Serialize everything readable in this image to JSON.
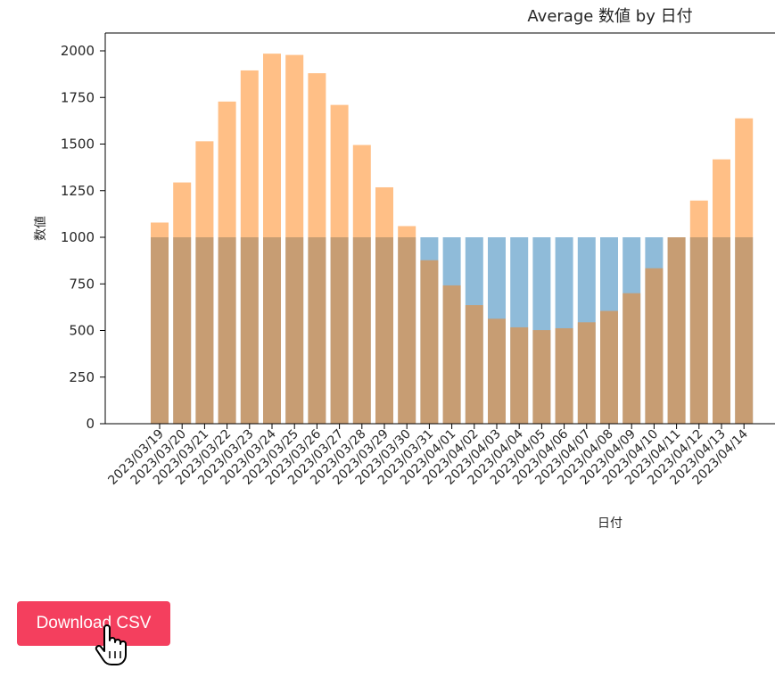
{
  "chart_data": {
    "type": "bar",
    "title": "Average 数値 by 日付",
    "xlabel": "日付",
    "ylabel": "数値",
    "ylim": [
      0,
      2100
    ],
    "yticks": [
      0,
      250,
      500,
      750,
      1000,
      1250,
      1500,
      1750,
      2000
    ],
    "baseline": 1000,
    "categories": [
      "2023/03/19",
      "2023/03/20",
      "2023/03/21",
      "2023/03/22",
      "2023/03/23",
      "2023/03/24",
      "2023/03/25",
      "2023/03/26",
      "2023/03/27",
      "2023/03/28",
      "2023/03/29",
      "2023/03/30",
      "2023/03/31",
      "2023/04/01",
      "2023/04/02",
      "2023/04/03",
      "2023/04/04",
      "2023/04/05",
      "2023/04/06",
      "2023/04/07",
      "2023/04/08",
      "2023/04/09",
      "2023/04/10",
      "2023/04/11",
      "2023/04/12",
      "2023/04/13",
      "2023/04/14"
    ],
    "series": [
      {
        "color": "#1f77b4",
        "values": [
          1000,
          1000,
          1000,
          1000,
          1000,
          1000,
          1000,
          1000,
          1000,
          1000,
          1000,
          1000,
          1000,
          1000,
          1000,
          1000,
          1000,
          1000,
          1000,
          1000,
          1000,
          1000,
          1000,
          1000,
          1000,
          1000,
          1000
        ]
      },
      {
        "color": "#ff7f0e",
        "values": [
          1079,
          1294,
          1515,
          1728,
          1895,
          1985,
          1978,
          1880,
          1710,
          1495,
          1268,
          1060,
          877,
          742,
          636,
          563,
          517,
          502,
          512,
          544,
          605,
          700,
          834,
          1000,
          1197,
          1418,
          1638
        ]
      }
    ],
    "grid": false,
    "legend": "none"
  },
  "actions": {
    "download_label": "Download CSV"
  },
  "colors": {
    "button": "#f43f5e",
    "series_blue": "#1f77b4",
    "series_orange": "#ff7f0e"
  }
}
